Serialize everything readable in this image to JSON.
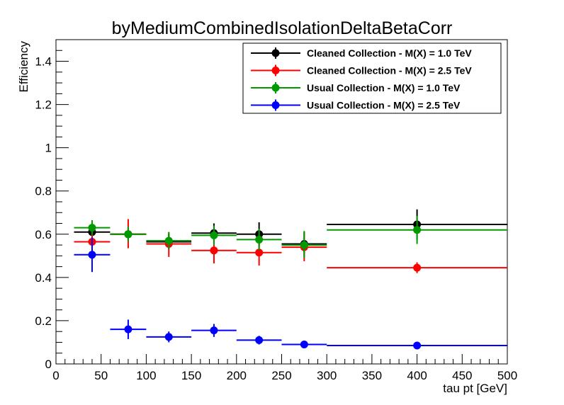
{
  "chart_data": {
    "type": "scatter",
    "title": "byMediumCombinedIsolationDeltaBetaCorr",
    "xlabel": "tau pt [GeV]",
    "ylabel": "Efficiency",
    "xlim": [
      0,
      500
    ],
    "ylim": [
      0,
      1.5
    ],
    "x_ticks": [
      "0",
      "50",
      "100",
      "150",
      "200",
      "250",
      "300",
      "350",
      "400",
      "450",
      "500"
    ],
    "y_ticks": [
      "0",
      "0.2",
      "0.4",
      "0.6",
      "0.8",
      "1",
      "1.2",
      "1.4"
    ],
    "legend_position": "top-right",
    "series": [
      {
        "name": "Cleaned Collection - M(X) = 1.0 TeV",
        "color": "#000000",
        "points": [
          {
            "x": 40,
            "xlow": 20,
            "xhigh": 60,
            "y": 0.61,
            "ylow": 0.57,
            "yhigh": 0.65
          },
          {
            "x": 80,
            "xlow": 60,
            "xhigh": 100,
            "y": 0.6,
            "ylow": 0.57,
            "yhigh": 0.63
          },
          {
            "x": 125,
            "xlow": 100,
            "xhigh": 150,
            "y": 0.565,
            "ylow": 0.53,
            "yhigh": 0.6
          },
          {
            "x": 175,
            "xlow": 150,
            "xhigh": 200,
            "y": 0.605,
            "ylow": 0.56,
            "yhigh": 0.65
          },
          {
            "x": 225,
            "xlow": 200,
            "xhigh": 250,
            "y": 0.6,
            "ylow": 0.545,
            "yhigh": 0.655
          },
          {
            "x": 275,
            "xlow": 250,
            "xhigh": 300,
            "y": 0.555,
            "ylow": 0.5,
            "yhigh": 0.61
          },
          {
            "x": 400,
            "xlow": 300,
            "xhigh": 500,
            "y": 0.645,
            "ylow": 0.575,
            "yhigh": 0.715
          }
        ]
      },
      {
        "name": "Cleaned Collection - M(X) = 2.5 TeV",
        "color": "#ff0000",
        "points": [
          {
            "x": 40,
            "xlow": 20,
            "xhigh": 60,
            "y": 0.565,
            "ylow": 0.515,
            "yhigh": 0.615
          },
          {
            "x": 80,
            "xlow": 60,
            "xhigh": 100,
            "y": 0.6,
            "ylow": 0.535,
            "yhigh": 0.67
          },
          {
            "x": 125,
            "xlow": 100,
            "xhigh": 150,
            "y": 0.555,
            "ylow": 0.495,
            "yhigh": 0.61
          },
          {
            "x": 175,
            "xlow": 150,
            "xhigh": 200,
            "y": 0.525,
            "ylow": 0.465,
            "yhigh": 0.59
          },
          {
            "x": 225,
            "xlow": 200,
            "xhigh": 250,
            "y": 0.515,
            "ylow": 0.455,
            "yhigh": 0.575
          },
          {
            "x": 275,
            "xlow": 250,
            "xhigh": 300,
            "y": 0.54,
            "ylow": 0.475,
            "yhigh": 0.605
          },
          {
            "x": 400,
            "xlow": 300,
            "xhigh": 500,
            "y": 0.445,
            "ylow": 0.42,
            "yhigh": 0.47
          }
        ]
      },
      {
        "name": "Usual Collection - M(X) = 1.0 TeV",
        "color": "#009900",
        "points": [
          {
            "x": 40,
            "xlow": 20,
            "xhigh": 60,
            "y": 0.63,
            "ylow": 0.595,
            "yhigh": 0.665
          },
          {
            "x": 80,
            "xlow": 60,
            "xhigh": 100,
            "y": 0.6,
            "ylow": 0.565,
            "yhigh": 0.635
          },
          {
            "x": 125,
            "xlow": 100,
            "xhigh": 150,
            "y": 0.57,
            "ylow": 0.53,
            "yhigh": 0.61
          },
          {
            "x": 175,
            "xlow": 150,
            "xhigh": 200,
            "y": 0.595,
            "ylow": 0.55,
            "yhigh": 0.64
          },
          {
            "x": 225,
            "xlow": 200,
            "xhigh": 250,
            "y": 0.575,
            "ylow": 0.525,
            "yhigh": 0.625
          },
          {
            "x": 275,
            "xlow": 250,
            "xhigh": 300,
            "y": 0.55,
            "ylow": 0.49,
            "yhigh": 0.615
          },
          {
            "x": 400,
            "xlow": 300,
            "xhigh": 500,
            "y": 0.62,
            "ylow": 0.555,
            "yhigh": 0.685
          }
        ]
      },
      {
        "name": "Usual Collection - M(X) = 2.5 TeV",
        "color": "#0000ff",
        "points": [
          {
            "x": 40,
            "xlow": 20,
            "xhigh": 60,
            "y": 0.505,
            "ylow": 0.425,
            "yhigh": 0.585
          },
          {
            "x": 80,
            "xlow": 60,
            "xhigh": 100,
            "y": 0.16,
            "ylow": 0.115,
            "yhigh": 0.205
          },
          {
            "x": 125,
            "xlow": 100,
            "xhigh": 150,
            "y": 0.125,
            "ylow": 0.1,
            "yhigh": 0.15
          },
          {
            "x": 175,
            "xlow": 150,
            "xhigh": 200,
            "y": 0.155,
            "ylow": 0.125,
            "yhigh": 0.185
          },
          {
            "x": 225,
            "xlow": 200,
            "xhigh": 250,
            "y": 0.11,
            "ylow": 0.09,
            "yhigh": 0.13
          },
          {
            "x": 275,
            "xlow": 250,
            "xhigh": 300,
            "y": 0.09,
            "ylow": 0.075,
            "yhigh": 0.105
          },
          {
            "x": 400,
            "xlow": 300,
            "xhigh": 500,
            "y": 0.085,
            "ylow": 0.075,
            "yhigh": 0.095
          }
        ]
      }
    ]
  }
}
